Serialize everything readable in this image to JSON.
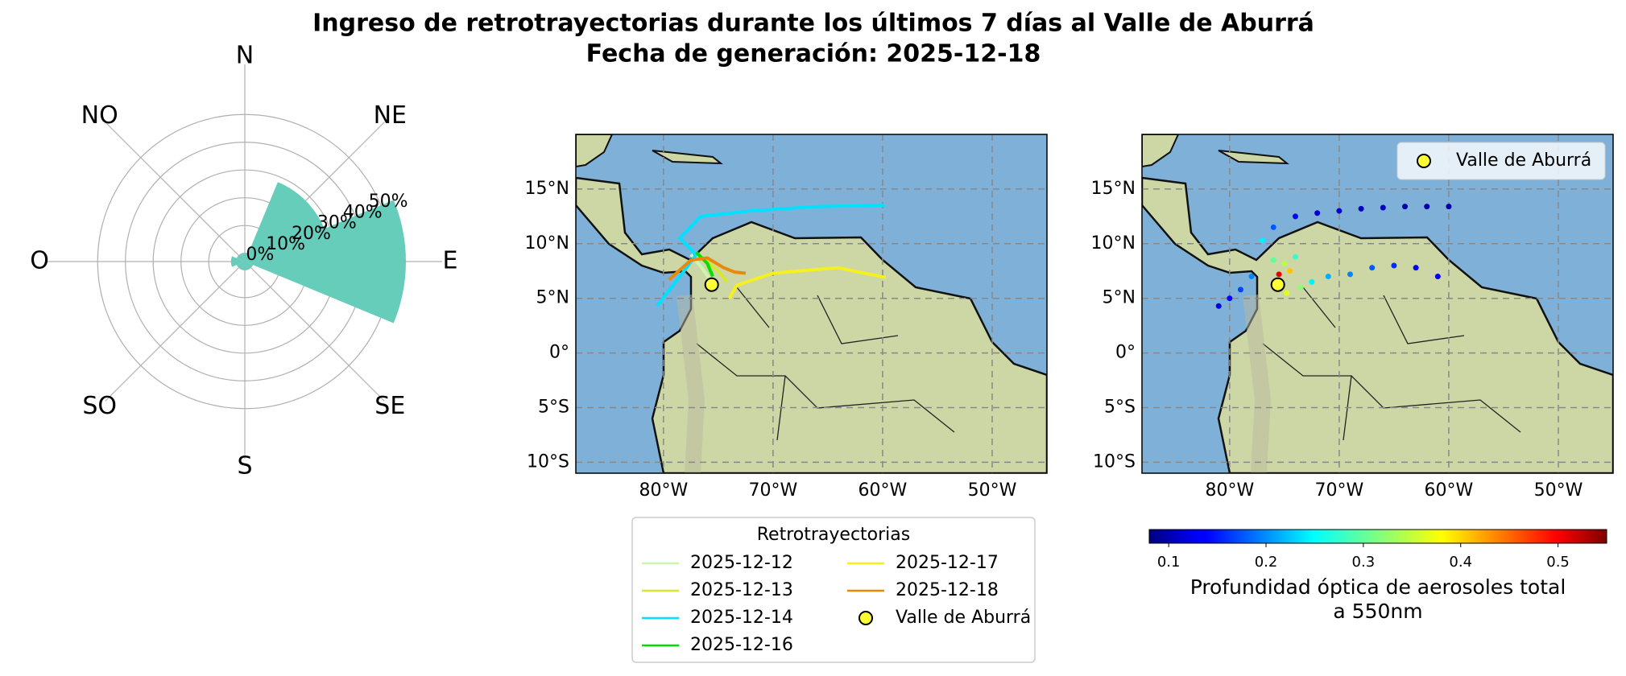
{
  "title": [
    "Ingreso de retrotrayectorias durante los últimos 7 días al Valle de Aburrá",
    "Fecha de generación: 2025-12-18"
  ],
  "chart_data": [
    {
      "type": "rose",
      "categories": [
        "N",
        "NE",
        "E",
        "SE",
        "S",
        "SO",
        "O",
        "NO"
      ],
      "values": [
        0,
        28,
        55,
        0,
        0,
        0,
        2,
        0
      ],
      "color": "#66cdbb",
      "rlim": [
        -3,
        55
      ],
      "rticks": [
        {
          "value": 0,
          "label": "0%"
        },
        {
          "value": 10,
          "label": "10%"
        },
        {
          "value": 20,
          "label": "20%"
        },
        {
          "value": 30,
          "label": "30%"
        },
        {
          "value": 40,
          "label": "40%"
        },
        {
          "value": 50,
          "label": "50%"
        }
      ]
    },
    {
      "type": "map",
      "xlim": [
        -88,
        -45
      ],
      "ylim": [
        -11,
        20
      ],
      "xticks": [
        {
          "value": -80,
          "label": "80°W"
        },
        {
          "value": -70,
          "label": "70°W"
        },
        {
          "value": -60,
          "label": "60°W"
        },
        {
          "value": -50,
          "label": "50°W"
        }
      ],
      "yticks": [
        {
          "value": 15,
          "label": "15°N"
        },
        {
          "value": 10,
          "label": "10°N"
        },
        {
          "value": 5,
          "label": "5°N"
        },
        {
          "value": 0,
          "label": "0°"
        },
        {
          "value": -5,
          "label": "5°S"
        },
        {
          "value": -10,
          "label": "10°S"
        }
      ],
      "grid": true,
      "series": [
        {
          "name": "2025-12-12",
          "color": "#ccf5b0",
          "x": [
            -77.5,
            -76.5,
            -75.8
          ],
          "y": [
            9.0,
            7.8,
            6.8
          ]
        },
        {
          "name": "2025-12-13",
          "color": "#d4e830",
          "x": [
            -76.5,
            -75,
            -74.2
          ],
          "y": [
            8.8,
            7.5,
            6.5
          ]
        },
        {
          "name": "2025-12-14",
          "color": "#00e0ff",
          "x": [
            -59.8,
            -66,
            -72,
            -76.6,
            -78.5,
            -77,
            -78.5,
            -80.6
          ],
          "y": [
            13.5,
            13.4,
            13.0,
            12.5,
            10.5,
            9.0,
            7.0,
            4.3
          ]
        },
        {
          "name": "2025-12-16",
          "color": "#00e000",
          "x": [
            -77,
            -76,
            -75.5
          ],
          "y": [
            9.2,
            8.2,
            7.0
          ]
        },
        {
          "name": "2025-12-17",
          "color": "#f5f020",
          "x": [
            -59.7,
            -64.1,
            -70,
            -73.3,
            -74
          ],
          "y": [
            6.9,
            7.8,
            7.3,
            6.2,
            5.0
          ]
        },
        {
          "name": "2025-12-18",
          "color": "#e8890c",
          "x": [
            -79.5,
            -77.5,
            -76,
            -74.5,
            -73.5,
            -72.5
          ],
          "y": [
            6.7,
            8.5,
            8.7,
            7.8,
            7.4,
            7.3
          ]
        }
      ],
      "site": {
        "name": "Valle de Aburrá",
        "x": -75.6,
        "y": 6.25,
        "color": "#ffff33"
      },
      "legend": {
        "title": "Retrotrayectorias",
        "position": "below"
      }
    },
    {
      "type": "map-scatter",
      "xlim": [
        -88,
        -45
      ],
      "ylim": [
        -11,
        20
      ],
      "xticks": [
        {
          "value": -80,
          "label": "80°W"
        },
        {
          "value": -70,
          "label": "70°W"
        },
        {
          "value": -60,
          "label": "60°W"
        },
        {
          "value": -50,
          "label": "50°W"
        }
      ],
      "yticks": [
        {
          "value": 15,
          "label": "15°N"
        },
        {
          "value": 10,
          "label": "10°N"
        },
        {
          "value": 5,
          "label": "5°N"
        },
        {
          "value": 0,
          "label": "0°"
        },
        {
          "value": -5,
          "label": "5°S"
        },
        {
          "value": -10,
          "label": "10°S"
        }
      ],
      "grid": true,
      "x": [
        -60,
        -62,
        -64,
        -66,
        -68,
        -70,
        -72,
        -74,
        -76,
        -77,
        -61,
        -63,
        -65,
        -67,
        -69,
        -71,
        -72.5,
        -76,
        -75,
        -74.5,
        -74,
        -73.5,
        -75.5,
        -74.8,
        -78,
        -79,
        -80,
        -81
      ],
      "y": [
        13.4,
        13.4,
        13.4,
        13.3,
        13.2,
        13.0,
        12.8,
        12.5,
        11.5,
        10.3,
        7.0,
        7.8,
        8.0,
        7.8,
        7.2,
        7.0,
        6.5,
        8.5,
        8.2,
        7.5,
        8.8,
        6.0,
        7.2,
        5.5,
        7.0,
        5.8,
        5.0,
        4.3
      ],
      "values": [
        0.1,
        0.1,
        0.1,
        0.11,
        0.11,
        0.12,
        0.12,
        0.14,
        0.18,
        0.25,
        0.13,
        0.14,
        0.16,
        0.18,
        0.2,
        0.22,
        0.25,
        0.3,
        0.34,
        0.4,
        0.28,
        0.32,
        0.5,
        0.36,
        0.2,
        0.17,
        0.14,
        0.12
      ],
      "colormap": "jet",
      "clim": [
        0.08,
        0.55
      ],
      "colorbar": {
        "label": [
          "Profundidad óptica de aerosoles total",
          "a 550nm"
        ],
        "ticks": [
          0.1,
          0.2,
          0.3,
          0.4,
          0.5
        ]
      },
      "site": {
        "name": "Valle de Aburrá",
        "x": -75.6,
        "y": 6.25,
        "color": "#ffff33"
      },
      "legend": {
        "position": "upper right"
      }
    }
  ]
}
